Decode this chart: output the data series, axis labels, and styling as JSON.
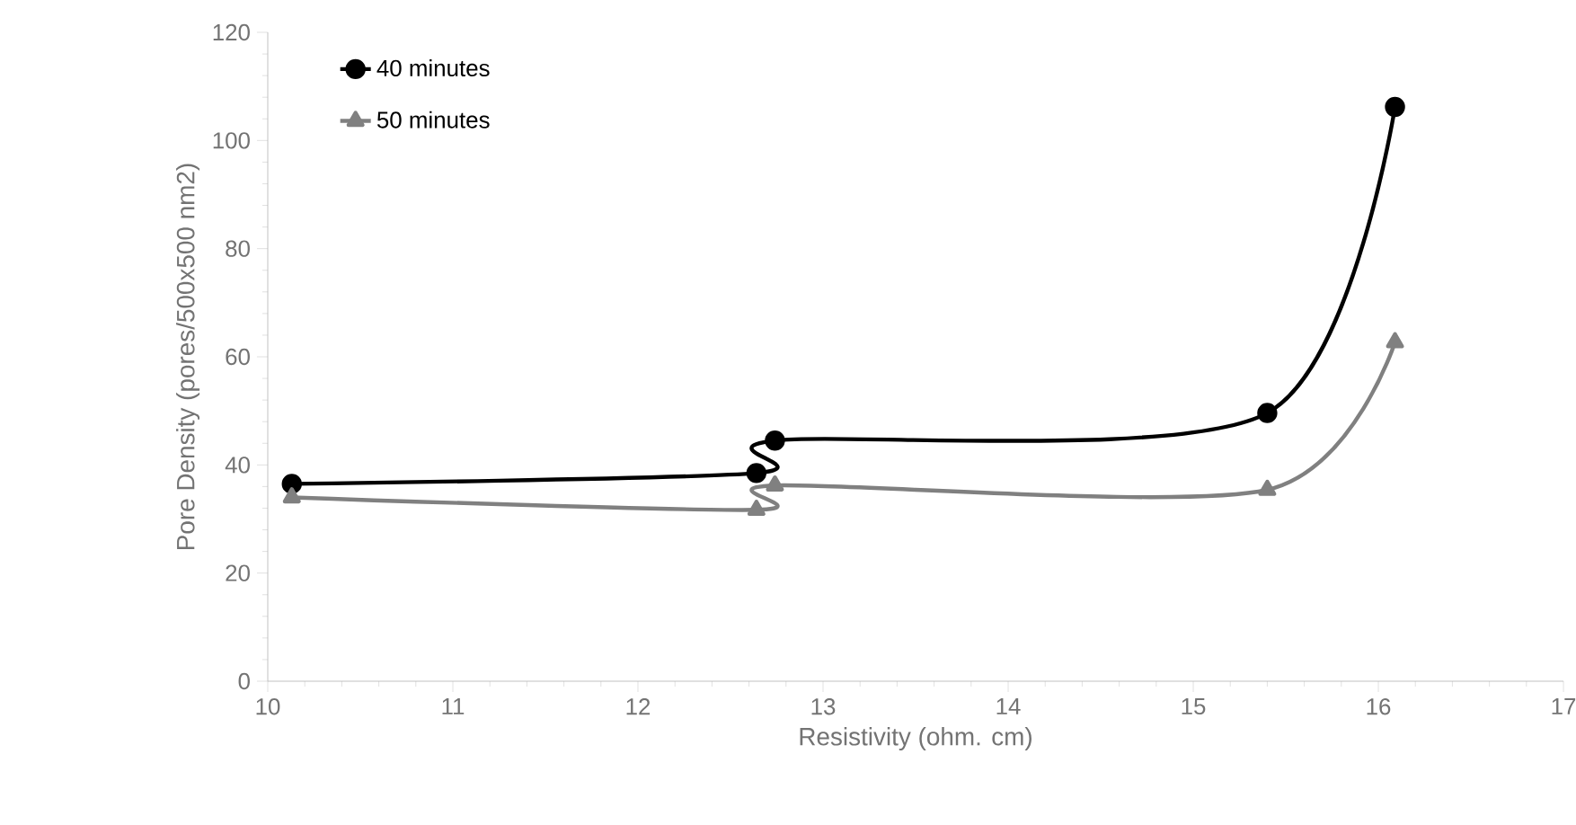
{
  "chart_data": {
    "type": "line",
    "xlabel": "Resistivity (ohm. cm)",
    "ylabel": "Pore Density (pores/500x500 nm2)",
    "xlim": [
      10,
      17
    ],
    "xticks": [
      10,
      11,
      12,
      13,
      14,
      15,
      16,
      17
    ],
    "ylim": [
      0,
      120
    ],
    "yticks": [
      0,
      20,
      40,
      60,
      80,
      100,
      120
    ],
    "grid": false,
    "legend": "top left",
    "line_style": "solid",
    "series": [
      {
        "name": "40 minutes",
        "color": "#000000",
        "marker": "circle",
        "x": [
          10.13,
          12.64,
          12.74,
          15.4,
          16.09
        ],
        "values": [
          36.5,
          38.5,
          44.5,
          49.6,
          106.2
        ]
      },
      {
        "name": "50 minutes",
        "color": "#808080",
        "marker": "triangle",
        "x": [
          10.13,
          12.64,
          12.74,
          15.4,
          16.09
        ],
        "values": [
          34,
          31.7,
          36.2,
          35.4,
          62.7
        ]
      }
    ]
  }
}
